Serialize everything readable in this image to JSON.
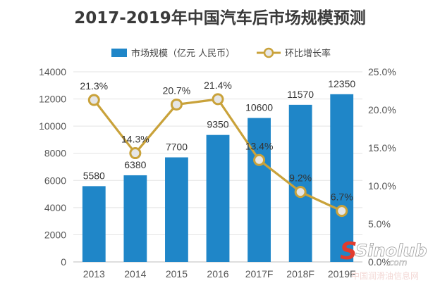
{
  "chart_data": {
    "type": "bar",
    "title": "2017-2019年中国汽车后市场规模预测",
    "categories": [
      "2013",
      "2014",
      "2015",
      "2016",
      "2017F",
      "2018F",
      "2019F"
    ],
    "series": [
      {
        "name": "市场规模（亿元 人民币）",
        "type": "bar",
        "axis": "left",
        "values": [
          5580,
          6380,
          7700,
          9350,
          10600,
          11570,
          12350
        ],
        "labels": [
          "5580",
          "6380",
          "7700",
          "9350",
          "10600",
          "11570",
          "12350"
        ],
        "color": "#1f86c8"
      },
      {
        "name": "环比增长率",
        "type": "line",
        "axis": "right",
        "values": [
          21.3,
          14.3,
          20.7,
          21.4,
          13.4,
          9.2,
          6.7
        ],
        "labels": [
          "21.3%",
          "14.3%",
          "20.7%",
          "21.4%",
          "13.4%",
          "9.2%",
          "6.7%"
        ],
        "color": "#c9a23a"
      }
    ],
    "y_left": {
      "range": [
        0,
        14000
      ],
      "ticks": [
        "0",
        "2000",
        "4000",
        "6000",
        "8000",
        "10000",
        "12000",
        "14000"
      ]
    },
    "y_right": {
      "range": [
        0,
        25
      ],
      "ticks": [
        "0.0%",
        "5.0%",
        "10.0%",
        "15.0%",
        "20.0%",
        "25.0%"
      ]
    },
    "grid": true,
    "legend_position": "top-center"
  },
  "watermark": {
    "logo_text": "Sinolub",
    "domain": ".com",
    "site_name": "中国润滑油信息网"
  }
}
